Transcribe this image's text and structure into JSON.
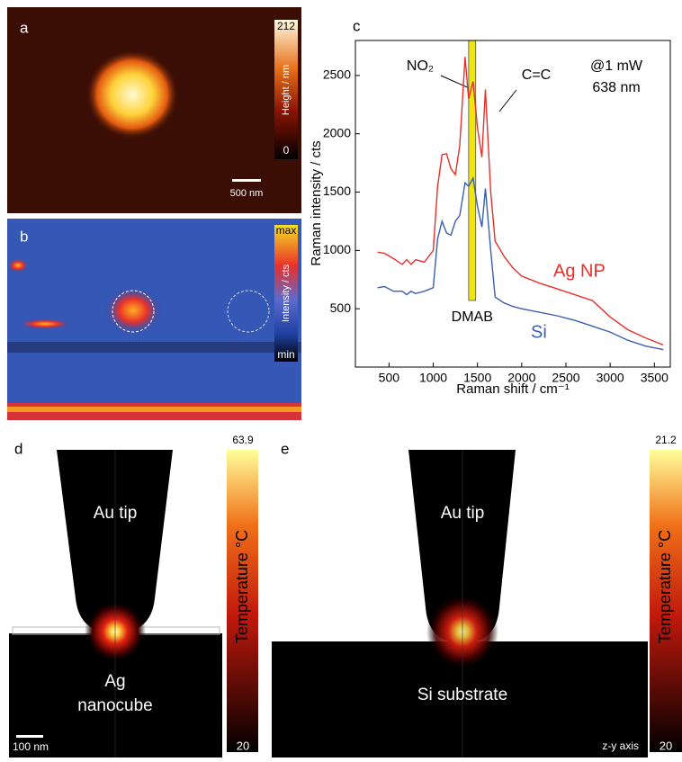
{
  "panel_a": {
    "letter": "a",
    "colorbar_max": 212,
    "colorbar_min": 0,
    "colorbar_label": "Height / nm",
    "scale_bar": "500 nm"
  },
  "panel_b": {
    "letter": "b",
    "colorbar_max": "max",
    "colorbar_min": "min",
    "colorbar_label": "Intensity / cts"
  },
  "chart_data": {
    "type": "line",
    "letter": "c",
    "x_label": "Raman shift / cm⁻¹",
    "y_label": "Raman intensity / cts",
    "x": [
      370,
      450,
      550,
      650,
      700,
      750,
      800,
      900,
      1000,
      1050,
      1100,
      1150,
      1200,
      1250,
      1300,
      1360,
      1400,
      1450,
      1500,
      1550,
      1590,
      1650,
      1700,
      1800,
      1900,
      2000,
      2200,
      2400,
      2600,
      2800,
      3000,
      3200,
      3400,
      3600
    ],
    "series": [
      {
        "name": "Ag NP",
        "color": "#e8302a",
        "values": [
          985,
          975,
          930,
          880,
          920,
          880,
          920,
          900,
          1000,
          1550,
          1820,
          1830,
          1700,
          1650,
          1900,
          2660,
          2300,
          2450,
          2050,
          1800,
          2380,
          1500,
          1080,
          950,
          850,
          780,
          720,
          670,
          620,
          570,
          430,
          320,
          250,
          190
        ]
      },
      {
        "name": "Si",
        "color": "#3a5fb0",
        "values": [
          680,
          690,
          650,
          650,
          620,
          650,
          630,
          650,
          680,
          1100,
          1250,
          1150,
          1130,
          1250,
          1300,
          1580,
          1550,
          1620,
          1380,
          1200,
          1530,
          1000,
          600,
          550,
          520,
          500,
          470,
          440,
          400,
          350,
          300,
          230,
          180,
          150
        ]
      }
    ],
    "highlight": {
      "label": "DMAB",
      "range": [
        1400,
        1480
      ],
      "color": "#f0e60a"
    },
    "annotations": [
      "NO₂",
      "C=C",
      "@1 mW",
      "638 nm"
    ],
    "xlim": [
      120,
      3680
    ],
    "ylim": [
      0,
      2800
    ],
    "xticks": [
      500,
      1000,
      1500,
      2000,
      2500,
      3000,
      3500
    ],
    "yticks": [
      500,
      1000,
      1500,
      2000,
      2500
    ]
  },
  "panel_d": {
    "letter": "d",
    "tip_label": "Au tip",
    "sample_label_1": "Ag",
    "sample_label_2": "nanocube",
    "scale_bar": "100 nm",
    "colorbar_max": 63.9,
    "colorbar_min": 20,
    "colorbar_label": "Temperature °C"
  },
  "panel_e": {
    "letter": "e",
    "tip_label": "Au tip",
    "sample_label": "Si substrate",
    "axis_note": "z-y axis",
    "colorbar_max": 21.2,
    "colorbar_min": 20,
    "colorbar_label": "Temperature °C"
  }
}
